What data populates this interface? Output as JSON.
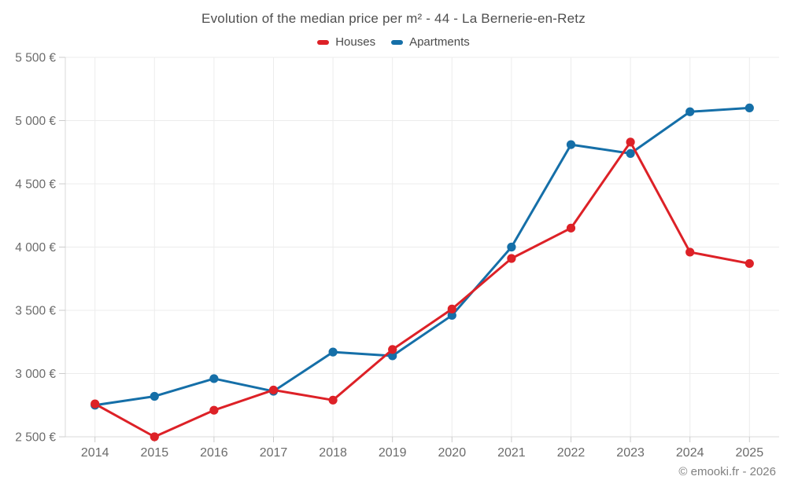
{
  "footer": "© emooki.fr - 2026",
  "chart_data": {
    "type": "line",
    "title": "Evolution of the median price per m² - 44 - La Bernerie-en-Retz",
    "categories": [
      "2014",
      "2015",
      "2016",
      "2017",
      "2018",
      "2019",
      "2020",
      "2021",
      "2022",
      "2023",
      "2024",
      "2025"
    ],
    "series": [
      {
        "name": "Houses",
        "color": "#dd2127",
        "values": [
          2760,
          2500,
          2710,
          2870,
          2790,
          3190,
          3510,
          3910,
          4150,
          4830,
          3960,
          3870
        ]
      },
      {
        "name": "Apartments",
        "color": "#156fa8",
        "values": [
          2750,
          2820,
          2960,
          2860,
          3170,
          3140,
          3460,
          4000,
          4810,
          4740,
          5070,
          5100
        ]
      }
    ],
    "xlabel": "",
    "ylabel": "",
    "ylim": [
      2500,
      5500
    ],
    "yticks": [
      {
        "value": 2500,
        "label": "2 500 €"
      },
      {
        "value": 3000,
        "label": "3 000 €"
      },
      {
        "value": 3500,
        "label": "3 500 €"
      },
      {
        "value": 4000,
        "label": "4 000 €"
      },
      {
        "value": 4500,
        "label": "4 500 €"
      },
      {
        "value": 5000,
        "label": "5 000 €"
      },
      {
        "value": 5500,
        "label": "5 500 €"
      }
    ],
    "grid": true,
    "legend_position": "top",
    "axis_text_color": "#6b6b6b",
    "grid_color": "#ececec",
    "axis_line_color": "#d8d8d8"
  }
}
